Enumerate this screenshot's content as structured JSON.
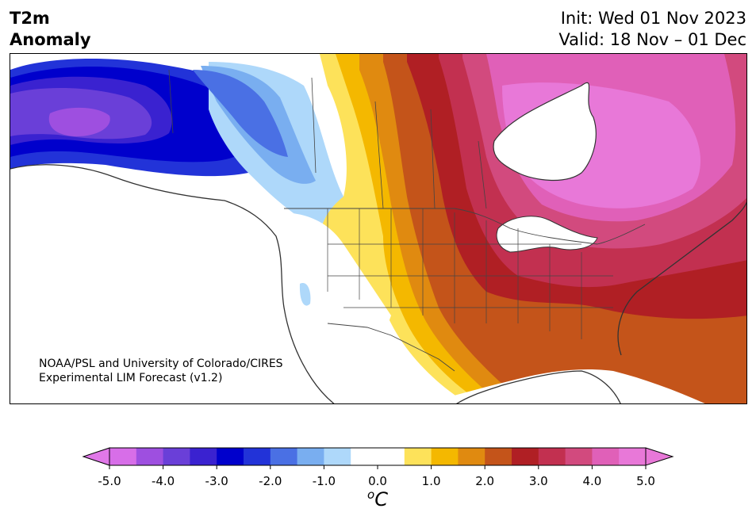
{
  "header": {
    "title_line1": "T2m",
    "title_line2": "Anomaly",
    "init": "Init: Wed 01 Nov 2023",
    "valid": "Valid: 18 Nov – 01 Dec"
  },
  "credit": {
    "line1": "NOAA/PSL and University of Colorado/CIRES",
    "line2": "Experimental LIM Forecast (v1.2)"
  },
  "colorbar": {
    "unit_base": "C",
    "unit_prefix": "o",
    "ticks": [
      "-5.0",
      "-4.0",
      "-3.0",
      "-2.0",
      "-1.0",
      "0.0",
      "1.0",
      "2.0",
      "3.0",
      "4.0",
      "5.0"
    ],
    "colors": [
      "#d76ee8",
      "#9e4fe0",
      "#6a3fd8",
      "#3a22d0",
      "#0000cc",
      "#2233d8",
      "#4a70e4",
      "#79aef0",
      "#aed8fa",
      "#ffffff",
      "#ffffff",
      "#fde25a",
      "#f4b800",
      "#e08a10",
      "#c4541a",
      "#b01f24",
      "#c23050",
      "#d24a7e",
      "#e060b8",
      "#e878d8"
    ],
    "under_color": "#e078e8",
    "over_color": "#e878d8"
  },
  "map": {
    "region": "North America",
    "colors": {
      "land": "#ffffff",
      "coast": "#333333",
      "border": "#444444"
    }
  }
}
